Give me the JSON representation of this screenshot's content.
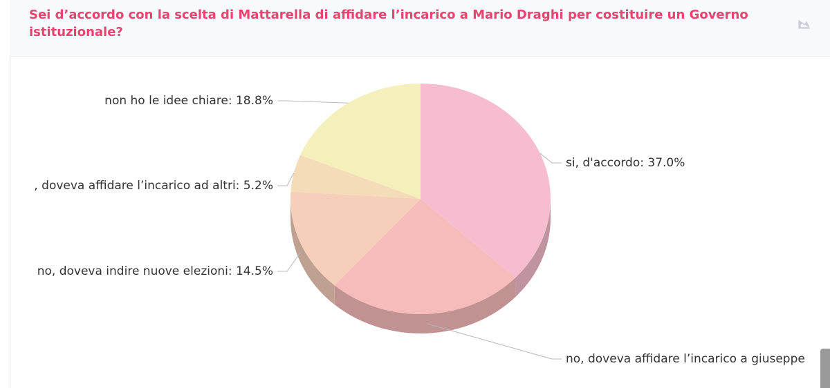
{
  "chart_data": {
    "type": "pie3d",
    "title": "Sei d’accordo con la scelta di Mattarella di affidare l’incarico a Mario Draghi per costituire un Governo istituzionale?",
    "values": [
      37.0,
      24.5,
      14.5,
      5.2,
      18.8
    ],
    "value_labels": [
      "si, d'accordo: 37.0%",
      "no, doveva affidare l’incarico a giuseppe",
      "no, doveva indire nuove elezioni: 14.5%",
      ", doveva affidare l’incarico ad altri: 5.2%",
      "non ho le idee chiare: 18.8%"
    ],
    "colors": [
      "#f6bccf",
      "#f6bcbb",
      "#f5cfba",
      "#f5dcb8",
      "#f5efbb"
    ]
  }
}
